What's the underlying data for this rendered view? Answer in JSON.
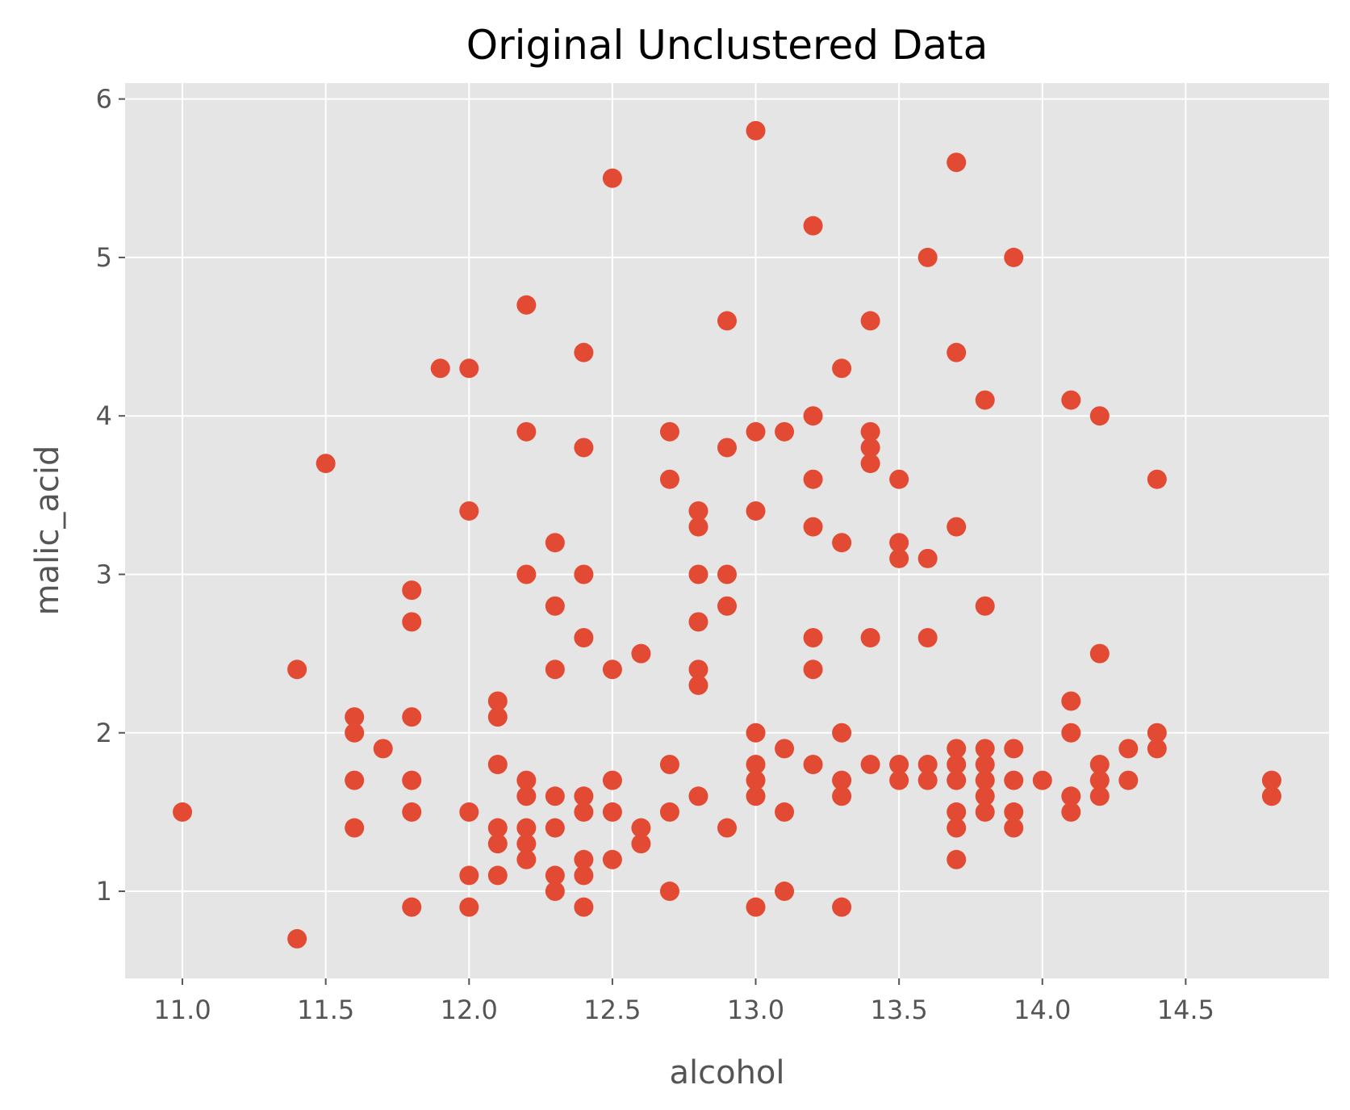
{
  "chart_data": {
    "type": "scatter",
    "title": "Original Unclustered Data",
    "xlabel": "alcohol",
    "ylabel": "malic_acid",
    "xlim": [
      10.8,
      15.0
    ],
    "ylim": [
      0.45,
      6.1
    ],
    "xticks": [
      11.0,
      11.5,
      12.0,
      12.5,
      13.0,
      13.5,
      14.0,
      14.5
    ],
    "xtick_labels": [
      "11.0",
      "11.5",
      "12.0",
      "12.5",
      "13.0",
      "13.5",
      "14.0",
      "14.5"
    ],
    "yticks": [
      1,
      2,
      3,
      4,
      5,
      6
    ],
    "ytick_labels": [
      "1",
      "2",
      "3",
      "4",
      "5",
      "6"
    ],
    "grid": true,
    "legend": "none",
    "colors": {
      "background": "#e5e5e5",
      "point": "#e24a33",
      "grid": "#ffffff",
      "tick_text": "#555555"
    },
    "points": [
      [
        11.0,
        1.5
      ],
      [
        11.4,
        0.7
      ],
      [
        11.4,
        2.4
      ],
      [
        11.5,
        3.7
      ],
      [
        11.6,
        2.1
      ],
      [
        11.6,
        2.0
      ],
      [
        11.6,
        1.7
      ],
      [
        11.6,
        1.4
      ],
      [
        11.7,
        1.9
      ],
      [
        11.8,
        2.9
      ],
      [
        11.8,
        2.7
      ],
      [
        11.8,
        2.1
      ],
      [
        11.8,
        1.7
      ],
      [
        11.8,
        1.5
      ],
      [
        11.8,
        0.9
      ],
      [
        11.9,
        4.3
      ],
      [
        12.0,
        4.3
      ],
      [
        12.0,
        3.4
      ],
      [
        12.0,
        1.5
      ],
      [
        12.0,
        1.1
      ],
      [
        12.0,
        0.9
      ],
      [
        12.1,
        2.2
      ],
      [
        12.1,
        2.1
      ],
      [
        12.1,
        1.8
      ],
      [
        12.1,
        1.4
      ],
      [
        12.1,
        1.3
      ],
      [
        12.1,
        1.1
      ],
      [
        12.2,
        4.7
      ],
      [
        12.2,
        3.9
      ],
      [
        12.2,
        3.0
      ],
      [
        12.2,
        1.7
      ],
      [
        12.2,
        1.6
      ],
      [
        12.2,
        1.4
      ],
      [
        12.2,
        1.3
      ],
      [
        12.2,
        1.2
      ],
      [
        12.3,
        3.2
      ],
      [
        12.3,
        2.8
      ],
      [
        12.3,
        2.4
      ],
      [
        12.3,
        1.6
      ],
      [
        12.3,
        1.4
      ],
      [
        12.3,
        1.1
      ],
      [
        12.3,
        1.0
      ],
      [
        12.4,
        4.4
      ],
      [
        12.4,
        3.8
      ],
      [
        12.4,
        3.0
      ],
      [
        12.4,
        2.6
      ],
      [
        12.4,
        1.6
      ],
      [
        12.4,
        1.5
      ],
      [
        12.4,
        1.2
      ],
      [
        12.4,
        1.1
      ],
      [
        12.4,
        0.9
      ],
      [
        12.5,
        5.5
      ],
      [
        12.5,
        2.4
      ],
      [
        12.5,
        1.7
      ],
      [
        12.5,
        1.5
      ],
      [
        12.5,
        1.2
      ],
      [
        12.6,
        2.5
      ],
      [
        12.6,
        1.4
      ],
      [
        12.6,
        1.3
      ],
      [
        12.7,
        3.9
      ],
      [
        12.7,
        3.6
      ],
      [
        12.7,
        1.8
      ],
      [
        12.7,
        1.5
      ],
      [
        12.7,
        1.0
      ],
      [
        12.8,
        3.4
      ],
      [
        12.8,
        3.3
      ],
      [
        12.8,
        3.0
      ],
      [
        12.8,
        2.7
      ],
      [
        12.8,
        2.4
      ],
      [
        12.8,
        2.3
      ],
      [
        12.8,
        1.6
      ],
      [
        12.9,
        4.6
      ],
      [
        12.9,
        3.8
      ],
      [
        12.9,
        3.0
      ],
      [
        12.9,
        2.8
      ],
      [
        12.9,
        1.4
      ],
      [
        13.0,
        5.8
      ],
      [
        13.0,
        3.9
      ],
      [
        13.0,
        3.4
      ],
      [
        13.0,
        2.0
      ],
      [
        13.0,
        1.8
      ],
      [
        13.0,
        1.7
      ],
      [
        13.0,
        1.6
      ],
      [
        13.0,
        0.9
      ],
      [
        13.1,
        3.9
      ],
      [
        13.1,
        1.9
      ],
      [
        13.1,
        1.5
      ],
      [
        13.1,
        1.0
      ],
      [
        13.2,
        5.2
      ],
      [
        13.2,
        4.0
      ],
      [
        13.2,
        3.6
      ],
      [
        13.2,
        3.3
      ],
      [
        13.2,
        2.6
      ],
      [
        13.2,
        2.4
      ],
      [
        13.2,
        1.8
      ],
      [
        13.3,
        4.3
      ],
      [
        13.3,
        3.2
      ],
      [
        13.3,
        2.0
      ],
      [
        13.3,
        1.7
      ],
      [
        13.3,
        1.6
      ],
      [
        13.3,
        0.9
      ],
      [
        13.4,
        4.6
      ],
      [
        13.4,
        3.9
      ],
      [
        13.4,
        3.8
      ],
      [
        13.4,
        3.7
      ],
      [
        13.4,
        2.6
      ],
      [
        13.4,
        1.8
      ],
      [
        13.5,
        3.6
      ],
      [
        13.5,
        3.2
      ],
      [
        13.5,
        3.1
      ],
      [
        13.5,
        1.8
      ],
      [
        13.5,
        1.7
      ],
      [
        13.6,
        5.0
      ],
      [
        13.6,
        3.1
      ],
      [
        13.6,
        2.6
      ],
      [
        13.6,
        1.8
      ],
      [
        13.6,
        1.7
      ],
      [
        13.7,
        5.6
      ],
      [
        13.7,
        4.4
      ],
      [
        13.7,
        3.3
      ],
      [
        13.7,
        1.9
      ],
      [
        13.7,
        1.8
      ],
      [
        13.7,
        1.7
      ],
      [
        13.7,
        1.5
      ],
      [
        13.7,
        1.4
      ],
      [
        13.7,
        1.2
      ],
      [
        13.8,
        4.1
      ],
      [
        13.8,
        2.8
      ],
      [
        13.8,
        1.9
      ],
      [
        13.8,
        1.8
      ],
      [
        13.8,
        1.7
      ],
      [
        13.8,
        1.6
      ],
      [
        13.8,
        1.5
      ],
      [
        13.9,
        5.0
      ],
      [
        13.9,
        1.9
      ],
      [
        13.9,
        1.7
      ],
      [
        13.9,
        1.5
      ],
      [
        13.9,
        1.4
      ],
      [
        14.0,
        1.7
      ],
      [
        14.1,
        4.1
      ],
      [
        14.1,
        2.2
      ],
      [
        14.1,
        2.0
      ],
      [
        14.1,
        1.6
      ],
      [
        14.1,
        1.5
      ],
      [
        14.2,
        4.0
      ],
      [
        14.2,
        2.5
      ],
      [
        14.2,
        1.8
      ],
      [
        14.2,
        1.7
      ],
      [
        14.2,
        1.6
      ],
      [
        14.3,
        1.9
      ],
      [
        14.3,
        1.7
      ],
      [
        14.4,
        3.6
      ],
      [
        14.4,
        2.0
      ],
      [
        14.4,
        1.9
      ],
      [
        14.8,
        1.7
      ],
      [
        14.8,
        1.6
      ]
    ]
  }
}
